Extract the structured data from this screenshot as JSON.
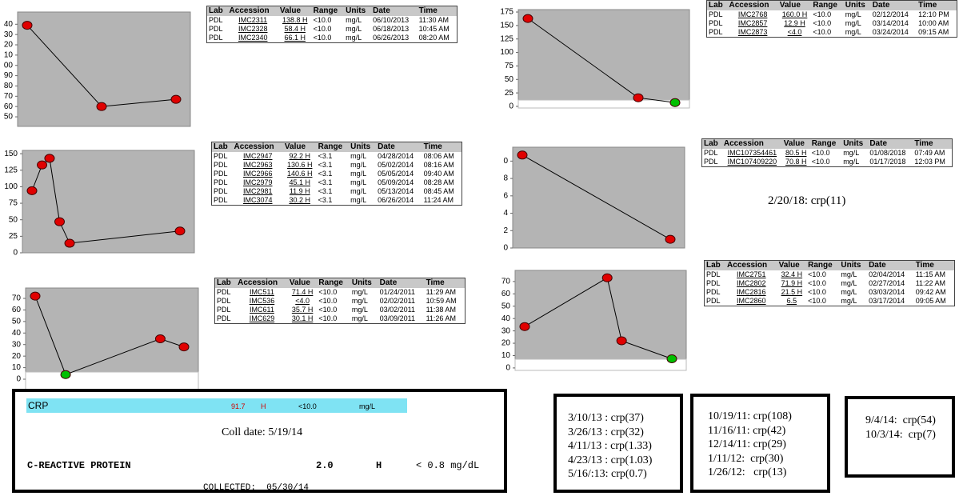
{
  "chart_data": [
    {
      "type": "line",
      "ylim": [
        40.7,
        151.9
      ],
      "yticks": [
        {
          "value": 140,
          "label": "40"
        },
        {
          "value": 130,
          "label": "30"
        },
        {
          "value": 120,
          "label": "20"
        },
        {
          "value": 110,
          "label": "10"
        },
        {
          "value": 100,
          "label": "00"
        },
        90,
        80,
        70,
        60,
        50
      ],
      "values": [
        139,
        60,
        67
      ],
      "marker_colors": [
        "#e00000",
        "#e00000",
        "#e00000"
      ]
    },
    {
      "type": "line",
      "ylim": [
        0,
        155
      ],
      "yticks": [
        150,
        125,
        100,
        75,
        50,
        25,
        0
      ],
      "values": [
        94,
        133,
        143,
        47,
        14.5,
        33
      ],
      "marker_colors": [
        "#e00000",
        "#e00000",
        "#e00000",
        "#e00000",
        "#e00000",
        "#e00000"
      ]
    },
    {
      "type": "line",
      "ylim": [
        -9,
        79
      ],
      "yticks": [
        70,
        60,
        50,
        40,
        30,
        20,
        10,
        0
      ],
      "values": [
        72,
        4,
        35,
        28
      ],
      "marker_colors": [
        "#e00000",
        "#00c000",
        "#e00000",
        "#e00000"
      ]
    },
    {
      "type": "line",
      "ylim": [
        -3,
        179.5
      ],
      "yticks": [
        175,
        150,
        125,
        100,
        75,
        50,
        25,
        0
      ],
      "values": [
        163,
        16,
        7
      ],
      "marker_colors": [
        "#e00000",
        "#e00000",
        "#00c000"
      ]
    },
    {
      "type": "line",
      "ylim": [
        0,
        11.6
      ],
      "yticks": [
        {
          "value": 10,
          "label": "0"
        },
        8,
        6,
        4,
        2,
        0
      ],
      "values": [
        10.7,
        1.0
      ],
      "marker_colors": [
        "#e00000",
        "#e00000"
      ]
    },
    {
      "type": "line",
      "ylim": [
        -2,
        79
      ],
      "yticks": [
        70,
        60,
        50,
        40,
        30,
        20,
        10,
        0
      ],
      "values": [
        33.5,
        73,
        22,
        7.4
      ],
      "marker_colors": [
        "#e00000",
        "#e00000",
        "#e00000",
        "#00c000"
      ]
    }
  ],
  "tables": [
    {
      "header": [
        "Lab",
        "Accession",
        "Value",
        "Range",
        "Units",
        "Date",
        "Time"
      ],
      "rows": [
        [
          "PDL",
          "IMC2311",
          "138.8 H",
          "<10.0",
          "mg/L",
          "06/10/2013",
          "11:30 AM"
        ],
        [
          "PDL",
          "IMC2328",
          "58.4 H",
          "<10.0",
          "mg/L",
          "06/18/2013",
          "10:45 AM"
        ],
        [
          "PDL",
          "IMC2340",
          "66.1 H",
          "<10.0",
          "mg/L",
          "06/26/2013",
          "08:20 AM"
        ]
      ]
    },
    {
      "header": [
        "Lab",
        "Accession",
        "Value",
        "Range",
        "Units",
        "Date",
        "Time"
      ],
      "rows": [
        [
          "PDL",
          "IMC2947",
          "92.2 H",
          "<3.1",
          "mg/L",
          "04/28/2014",
          "08:06 AM"
        ],
        [
          "PDL",
          "IMC2963",
          "130.6 H",
          "<3.1",
          "mg/L",
          "05/02/2014",
          "08:16 AM"
        ],
        [
          "PDL",
          "IMC2966",
          "140.6 H",
          "<3.1",
          "mg/L",
          "05/05/2014",
          "09:40 AM"
        ],
        [
          "PDL",
          "IMC2979",
          "45.1 H",
          "<3.1",
          "mg/L",
          "05/09/2014",
          "08:28 AM"
        ],
        [
          "PDL",
          "IMC2981",
          "11.9 H",
          "<3.1",
          "mg/L",
          "05/13/2014",
          "08:45 AM"
        ],
        [
          "PDL",
          "IMC3074",
          "30.2 H",
          "<3.1",
          "mg/L",
          "06/26/2014",
          "11:24 AM"
        ]
      ]
    },
    {
      "header": [
        "Lab",
        "Accession",
        "Value",
        "Range",
        "Units",
        "Date",
        "Time"
      ],
      "rows": [
        [
          "PDL",
          "IMC511",
          "71.4 H",
          "<10.0",
          "mg/L",
          "01/24/2011",
          "11:29 AM"
        ],
        [
          "PDL",
          "IMC536",
          "<4.0",
          "<10.0",
          "mg/L",
          "02/02/2011",
          "10:59 AM"
        ],
        [
          "PDL",
          "IMC611",
          "35.7 H",
          "<10.0",
          "mg/L",
          "03/02/2011",
          "11:38 AM"
        ],
        [
          "PDL",
          "IMC629",
          "30.1 H",
          "<10.0",
          "mg/L",
          "03/09/2011",
          "11:26 AM"
        ]
      ]
    },
    {
      "header": [
        "Lab",
        "Accession",
        "Value",
        "Range",
        "Units",
        "Date",
        "Time"
      ],
      "rows": [
        [
          "PDL",
          "IMC2768",
          "160.0 H",
          "<10.0",
          "mg/L",
          "02/12/2014",
          "12:10 PM"
        ],
        [
          "PDL",
          "IMC2857",
          "12.9 H",
          "<10.0",
          "mg/L",
          "03/14/2014",
          "10:00 AM"
        ],
        [
          "PDL",
          "IMC2873",
          "<4.0",
          "<10.0",
          "mg/L",
          "03/24/2014",
          "09:15 AM"
        ]
      ]
    },
    {
      "header": [
        "Lab",
        "Accession",
        "Value",
        "Range",
        "Units",
        "Date",
        "Time"
      ],
      "rows": [
        [
          "PDL",
          "IMC107354461",
          "80.5 H",
          "<10.0",
          "mg/L",
          "01/08/2018",
          "07:49 AM"
        ],
        [
          "PDL",
          "IMC107409220",
          "70.8 H",
          "<10.0",
          "mg/L",
          "01/17/2018",
          "12:03 PM"
        ]
      ]
    },
    {
      "header": [
        "Lab",
        "Accession",
        "Value",
        "Range",
        "Units",
        "Date",
        "Time"
      ],
      "rows": [
        [
          "PDL",
          "IMC2751",
          "32.4 H",
          "<10.0",
          "mg/L",
          "02/04/2014",
          "11:15 AM"
        ],
        [
          "PDL",
          "IMC2802",
          "71.9 H",
          "<10.0",
          "mg/L",
          "02/27/2014",
          "11:22 AM"
        ],
        [
          "PDL",
          "IMC2816",
          "21.5 H",
          "<10.0",
          "mg/L",
          "03/03/2014",
          "09:42 AM"
        ],
        [
          "PDL",
          "IMC2860",
          "6.5",
          "<10.0",
          "mg/L",
          "03/17/2014",
          "09:05 AM"
        ]
      ]
    }
  ],
  "note": "2/20/18: crp(11)",
  "lab_panel": {
    "crp_label": "CRP",
    "crp_value": "91.7",
    "crp_flag": "H",
    "crp_range": "<10.0",
    "crp_units": "mg/L",
    "coll_date": "Coll date: 5/19/14",
    "test_name": "C-REACTIVE PROTEIN",
    "test_value": "2.0",
    "test_flag": "H",
    "test_range": "< 0.8 mg/dL",
    "collected": "COLLECTED:  05/30/14"
  },
  "lists": [
    [
      "3/10/13 : crp(37)",
      "3/26/13 : crp(32)",
      "4/11/13 : crp(1.33)",
      "4/23/13 : crp(1.03)",
      "5/16/:13: crp(0.7)"
    ],
    [
      "10/19/11: crp(108)",
      "11/16/11: crp(42)",
      "12/14/11: crp(29)",
      "1/11/12:  crp(30)",
      "1/26/12:   crp(13)"
    ],
    [
      "9/4/14:  crp(54)",
      "10/3/14:  crp(7)"
    ]
  ]
}
